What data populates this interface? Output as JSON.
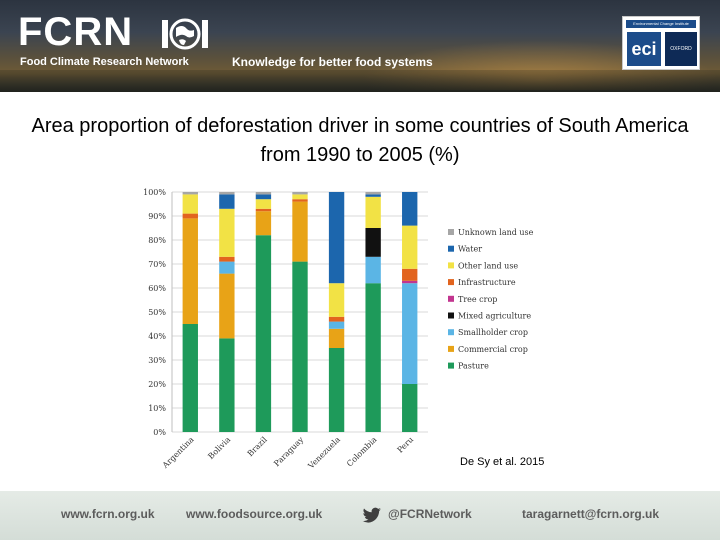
{
  "header": {
    "logo_text": "FCRN",
    "logo_subtitle": "Food Climate Research Network",
    "tagline": "Knowledge for better food systems",
    "partner_strip": "Environmental Change Institute",
    "partner_logo": "eci",
    "partner_oxford": "OXFORD"
  },
  "slide": {
    "title": "Area proportion of deforestation driver in some countries of South America from 1990 to 2005 (%)",
    "citation": "De Sy et al. 2015"
  },
  "chart_data": {
    "type": "bar",
    "stacked": true,
    "categories": [
      "Argentina",
      "Bolivia",
      "Brazil",
      "Paraguay",
      "Venezuela",
      "Colombia",
      "Peru"
    ],
    "y_ticks": [
      "0%",
      "10%",
      "20%",
      "30%",
      "40%",
      "50%",
      "60%",
      "70%",
      "80%",
      "90%",
      "100%"
    ],
    "ylim": [
      0,
      100
    ],
    "grid": true,
    "legend_position": "right",
    "series": [
      {
        "name": "Pasture",
        "color": "#1e9a5a",
        "values": [
          45,
          39,
          82,
          71,
          35,
          62,
          20
        ]
      },
      {
        "name": "Commercial crop",
        "color": "#e8a317",
        "values": [
          44,
          27,
          10,
          25,
          8,
          0,
          0
        ]
      },
      {
        "name": "Smallholder crop",
        "color": "#5bb5e5",
        "values": [
          0,
          5,
          0,
          0,
          3,
          11,
          42
        ]
      },
      {
        "name": "Mixed agriculture",
        "color": "#111111",
        "values": [
          0,
          0,
          0,
          0,
          0,
          12,
          0
        ]
      },
      {
        "name": "Tree crop",
        "color": "#c2358f",
        "values": [
          0,
          0,
          0,
          0,
          0,
          0,
          1
        ]
      },
      {
        "name": "Infrastructure",
        "color": "#e2641e",
        "values": [
          2,
          2,
          1,
          1,
          2,
          0,
          5
        ]
      },
      {
        "name": "Other land use",
        "color": "#f2e245",
        "values": [
          8,
          20,
          4,
          2,
          14,
          13,
          18
        ]
      },
      {
        "name": "Water",
        "color": "#1c66ad",
        "values": [
          0,
          6,
          2,
          0,
          38,
          1,
          14
        ]
      },
      {
        "name": "Unknown land use",
        "color": "#a6a6a6",
        "values": [
          1,
          1,
          1,
          1,
          0,
          1,
          0
        ]
      }
    ]
  },
  "footer": {
    "website": "www.fcrn.org.uk",
    "foodsource": "www.foodsource.org.uk",
    "twitter": "@FCRNetwork",
    "email": "taragarnett@fcrn.org.uk"
  }
}
